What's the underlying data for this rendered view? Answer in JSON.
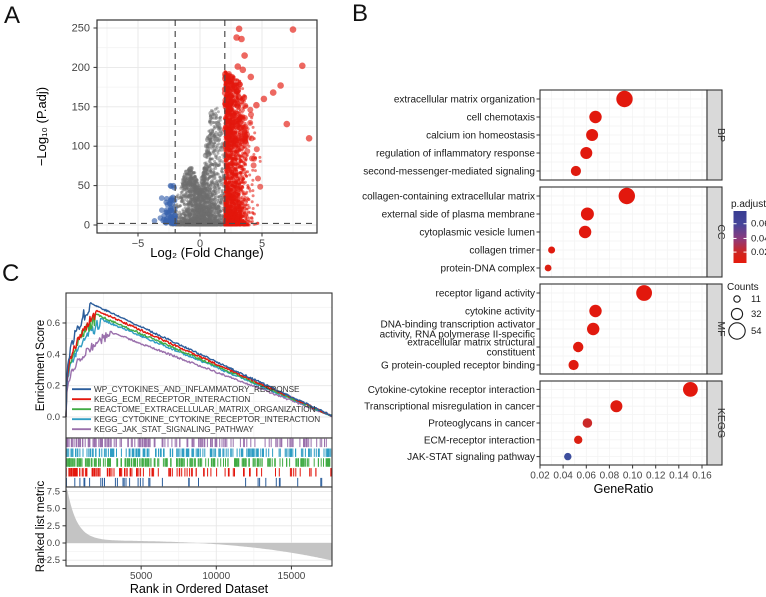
{
  "panel_labels": {
    "a": "A",
    "b": "B",
    "c": "C"
  },
  "colors": {
    "up_red": "#e3170d",
    "down_blue": "#3a64ae",
    "nonsig_gray": "#6e6e6e",
    "panel_border": "#333333",
    "grid_major": "#e7e7e7",
    "grid_minor": "#f3f3f3",
    "facet_strip_bg": "#d9d9d9",
    "dashed_line": "#4d4d4d",
    "tick_text": "#454545",
    "title_text": "#000000",
    "area_gray": "#c4c4c4"
  },
  "chart_data": [
    {
      "id": "volcano",
      "type": "scatter",
      "xlabel": "Log₂ (Fold Change)",
      "ylabel": "−Log₁₀ (P.adj)",
      "x_ticks": [
        -5,
        0,
        5
      ],
      "y_ticks": [
        0,
        50,
        100,
        150,
        200,
        250
      ],
      "xlim": [
        -8.3,
        9.4
      ],
      "ylim": [
        -10,
        260
      ],
      "threshold_vlines": [
        -2,
        2
      ],
      "threshold_hline": 2,
      "groups": {
        "nonsig": {
          "color_key": "nonsig_gray",
          "n": 2400,
          "envelope": [
            [
              -2.45,
              14
            ],
            [
              -1.8,
              40
            ],
            [
              -1.2,
              68
            ],
            [
              -0.7,
              78
            ],
            [
              -0.3,
              62
            ],
            [
              0,
              46
            ],
            [
              0.3,
              70
            ],
            [
              0.6,
              112
            ],
            [
              0.9,
              148
            ],
            [
              1.5,
              150
            ],
            [
              1.8,
              128
            ],
            [
              2,
              112
            ]
          ]
        },
        "up": {
          "color_key": "up_red",
          "n": 2400,
          "envelope": [
            [
              2,
              195
            ],
            [
              2.6,
              190
            ],
            [
              3.2,
              183
            ],
            [
              4,
              150
            ],
            [
              4.6,
              110
            ],
            [
              5.2,
              62
            ],
            [
              6,
              28
            ],
            [
              7,
              14
            ],
            [
              8.2,
              8
            ]
          ]
        },
        "down": {
          "color_key": "down_blue",
          "n": 64,
          "x_range": [
            -3.7,
            -2.0
          ],
          "y_range": [
            2,
            50
          ]
        }
      },
      "up_outliers": [
        [
          3.15,
          249
        ],
        [
          7.5,
          248
        ],
        [
          2.95,
          238
        ],
        [
          3.35,
          236
        ],
        [
          3.6,
          215
        ],
        [
          8.25,
          202
        ],
        [
          3.05,
          201
        ],
        [
          3.45,
          197
        ],
        [
          4.1,
          188
        ],
        [
          6.5,
          177
        ],
        [
          5.9,
          168
        ],
        [
          5.15,
          160
        ],
        [
          4.55,
          152
        ],
        [
          8.8,
          110
        ],
        [
          7.0,
          128
        ]
      ]
    },
    {
      "id": "enrichment-dotplot",
      "type": "scatter",
      "xlabel": "GeneRatio",
      "x_ticks": [
        0.02,
        0.04,
        0.06,
        0.08,
        0.1,
        0.12,
        0.14,
        0.16
      ],
      "xlim": [
        0.016,
        0.175
      ],
      "legend": {
        "color_title": "p.adjust",
        "color_ticks": [
          0.06,
          0.04,
          0.02
        ],
        "size_title": "Counts",
        "size_ticks": [
          11,
          32,
          54
        ]
      },
      "facets": [
        {
          "label": "BP",
          "rows": [
            {
              "term": "extracellular matrix organization",
              "gene_ratio": 0.093,
              "count": 54,
              "p_adjust": 0.001
            },
            {
              "term": "cell chemotaxis",
              "gene_ratio": 0.068,
              "count": 37,
              "p_adjust": 0.001
            },
            {
              "term": "calcium ion homeostasis",
              "gene_ratio": 0.065,
              "count": 35,
              "p_adjust": 0.002
            },
            {
              "term": "regulation of inflammatory response",
              "gene_ratio": 0.06,
              "count": 35,
              "p_adjust": 0.002
            },
            {
              "term": "second-messenger-mediated signaling",
              "gene_ratio": 0.051,
              "count": 27,
              "p_adjust": 0.004
            }
          ]
        },
        {
          "label": "CC",
          "rows": [
            {
              "term": "collagen-containing extracellular matrix",
              "gene_ratio": 0.095,
              "count": 54,
              "p_adjust": 0.001
            },
            {
              "term": "external side of plasma membrane",
              "gene_ratio": 0.061,
              "count": 39,
              "p_adjust": 0.001
            },
            {
              "term": "cytoplasmic vesicle lumen",
              "gene_ratio": 0.059,
              "count": 37,
              "p_adjust": 0.002
            },
            {
              "term": "collagen trimer",
              "gene_ratio": 0.03,
              "count": 14,
              "p_adjust": 0.003
            },
            {
              "term": "protein-DNA complex",
              "gene_ratio": 0.027,
              "count": 13,
              "p_adjust": 0.008
            }
          ]
        },
        {
          "label": "MF",
          "rows": [
            {
              "term": "receptor ligand activity",
              "gene_ratio": 0.11,
              "count": 51,
              "p_adjust": 0.001
            },
            {
              "term": "cytokine activity",
              "gene_ratio": 0.068,
              "count": 37,
              "p_adjust": 0.001
            },
            {
              "term": "DNA-binding transcription activator\nactivity, RNA polymerase II-specific",
              "gene_ratio": 0.066,
              "count": 37,
              "p_adjust": 0.002
            },
            {
              "term": "extracellular matrix structural\nconstituent",
              "gene_ratio": 0.053,
              "count": 28,
              "p_adjust": 0.003
            },
            {
              "term": "G protein-coupled receptor binding",
              "gene_ratio": 0.049,
              "count": 27,
              "p_adjust": 0.004
            }
          ]
        },
        {
          "label": "KEGG",
          "rows": [
            {
              "term": "Cytokine-cytokine receptor interaction",
              "gene_ratio": 0.15,
              "count": 47,
              "p_adjust": 0.001
            },
            {
              "term": "Transcriptional misregulation in cancer",
              "gene_ratio": 0.086,
              "count": 35,
              "p_adjust": 0.004
            },
            {
              "term": "Proteoglycans in cancer",
              "gene_ratio": 0.061,
              "count": 25,
              "p_adjust": 0.018
            },
            {
              "term": "ECM-receptor interaction",
              "gene_ratio": 0.053,
              "count": 20,
              "p_adjust": 0.008
            },
            {
              "term": "JAK-STAT signaling pathway",
              "gene_ratio": 0.044,
              "count": 15,
              "p_adjust": 0.065
            }
          ]
        }
      ]
    },
    {
      "id": "gsea-enrichment",
      "type": "line",
      "ylabel": "Enrichment Score",
      "y_ticks": [
        0.0,
        0.2,
        0.4,
        0.6
      ],
      "x_max": 17700,
      "series": [
        {
          "name": "WP_CYTOKINES_AND_INFLAMMATORY_RESPONSE",
          "color": "#2b5d9b",
          "peak_rank": 1550,
          "peak_es": 0.73,
          "rug_ticks": 36
        },
        {
          "name": "KEGG_ECM_RECEPTOR_INTERACTION",
          "color": "#e3170d",
          "peak_rank": 2050,
          "peak_es": 0.68,
          "rug_ticks": 120
        },
        {
          "name": "REACTOME_EXTRACELLULAR_MATRIX_ORGANIZATION",
          "color": "#41ab45",
          "peak_rank": 2000,
          "peak_es": 0.655,
          "rug_ticks": 200
        },
        {
          "name": "KEGG_CYTOKINE_CYTOKINE_RECEPTOR_INTERACTION",
          "color": "#2f9dc3",
          "peak_rank": 2300,
          "peak_es": 0.625,
          "rug_ticks": 190
        },
        {
          "name": "KEGG_JAK_STAT_SIGNALING_PATHWAY",
          "color": "#9a70ac",
          "peak_rank": 2900,
          "peak_es": 0.545,
          "rug_ticks": 150
        }
      ],
      "rug_row_order_top_to_bottom": [
        4,
        3,
        2,
        1,
        0
      ]
    },
    {
      "id": "ranked-list-metric",
      "type": "area",
      "xlabel": "Rank in Ordered Dataset",
      "ylabel": "Ranked list metric",
      "x_ticks": [
        5000,
        10000,
        15000
      ],
      "y_ticks": [
        7.5,
        5.0,
        2.5,
        0.0,
        -2.5
      ],
      "x_max": 17700,
      "shape": {
        "start_value": 8.5,
        "decay_constant": 650,
        "mid_baseline": 0.35,
        "end_value": -2.55
      }
    }
  ]
}
